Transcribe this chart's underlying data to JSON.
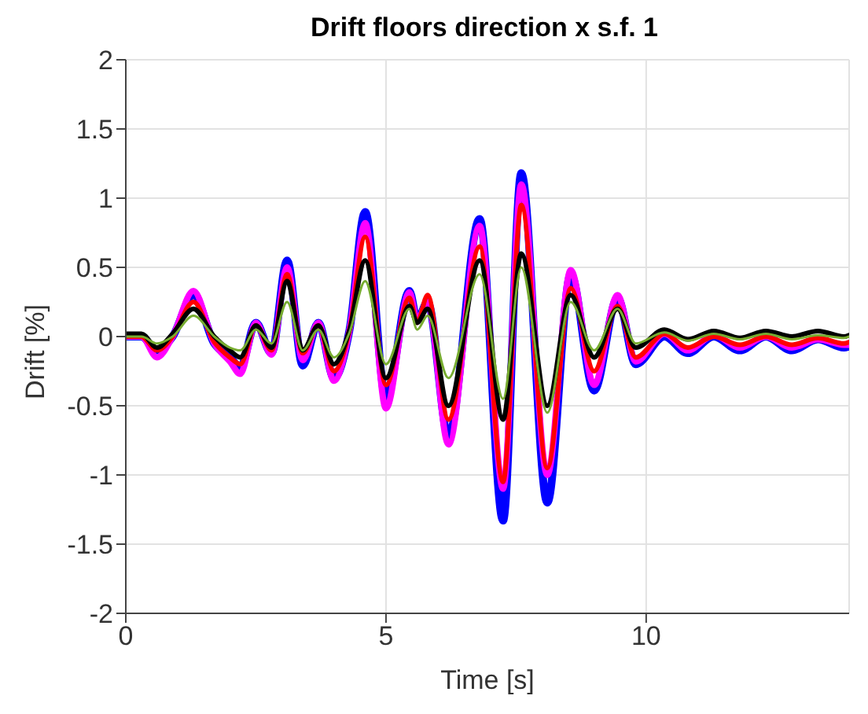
{
  "chart_data": {
    "type": "line",
    "title": "Drift floors direction x s.f. 1",
    "xlabel": "Time [s]",
    "ylabel": "Drift [%]",
    "x": [
      0,
      0.3,
      0.6,
      0.9,
      1.3,
      1.7,
      2.0,
      2.2,
      2.5,
      2.8,
      3.1,
      3.4,
      3.7,
      4.0,
      4.3,
      4.6,
      5.0,
      5.45,
      5.6,
      5.8,
      6.2,
      6.8,
      7.25,
      7.6,
      8.1,
      8.55,
      9.0,
      9.45,
      9.8,
      10.35,
      10.8,
      11.3,
      11.8,
      12.3,
      12.8,
      13.3,
      13.8,
      13.9
    ],
    "series": [
      {
        "color": "#0000ff",
        "values": [
          0,
          0,
          -0.1,
          0,
          0.3,
          -0.05,
          -0.15,
          -0.22,
          0.1,
          -0.12,
          0.55,
          -0.21,
          0.1,
          -0.3,
          0.05,
          0.9,
          -0.45,
          0.33,
          0.12,
          0.25,
          -0.72,
          0.85,
          -1.33,
          1.18,
          -1.2,
          0.45,
          -0.39,
          0.28,
          -0.2,
          0.0,
          -0.12,
          0.0,
          -0.1,
          0.0,
          -0.1,
          -0.02,
          -0.08,
          -0.07
        ]
      },
      {
        "color": "#ff00ff",
        "values": [
          0,
          0,
          -0.15,
          0,
          0.33,
          -0.05,
          -0.18,
          -0.27,
          0.1,
          -0.13,
          0.5,
          -0.17,
          0.1,
          -0.32,
          0.05,
          0.82,
          -0.52,
          0.32,
          0.12,
          0.25,
          -0.78,
          0.8,
          -1.1,
          1.1,
          -1.0,
          0.48,
          -0.35,
          0.3,
          -0.18,
          0.02,
          -0.1,
          0.01,
          -0.08,
          0.0,
          -0.08,
          -0.02,
          -0.06,
          -0.06
        ]
      },
      {
        "color": "#ff0000",
        "values": [
          0,
          0,
          -0.1,
          0,
          0.25,
          -0.04,
          -0.15,
          -0.2,
          0.08,
          -0.1,
          0.45,
          -0.12,
          0.08,
          -0.25,
          0.05,
          0.72,
          -0.35,
          0.28,
          0.1,
          0.3,
          -0.6,
          0.65,
          -1.05,
          0.95,
          -0.95,
          0.35,
          -0.25,
          0.22,
          -0.15,
          0.02,
          -0.08,
          0.0,
          -0.06,
          0.0,
          -0.06,
          -0.01,
          -0.05,
          -0.04
        ]
      },
      {
        "color": "#000000",
        "values": [
          0.02,
          0.02,
          -0.08,
          0.02,
          0.2,
          0,
          -0.1,
          -0.15,
          0.08,
          -0.08,
          0.4,
          -0.1,
          0.08,
          -0.2,
          0.05,
          0.55,
          -0.3,
          0.22,
          0.1,
          0.2,
          -0.5,
          0.55,
          -0.6,
          0.6,
          -0.5,
          0.3,
          -0.15,
          0.2,
          -0.08,
          0.05,
          -0.02,
          0.04,
          -0.01,
          0.04,
          0.0,
          0.04,
          0.0,
          0.01
        ]
      },
      {
        "color": "#77ac30",
        "values": [
          0,
          0,
          -0.05,
          0,
          0.15,
          0,
          -0.08,
          -0.1,
          0.05,
          -0.05,
          0.25,
          -0.1,
          0.05,
          -0.15,
          0.03,
          0.4,
          -0.2,
          0.2,
          0.05,
          0.15,
          -0.3,
          0.45,
          -0.45,
          0.5,
          -0.55,
          0.25,
          -0.1,
          0.2,
          -0.05,
          0.03,
          -0.03,
          0.02,
          -0.02,
          0.02,
          -0.02,
          0.01,
          -0.01,
          0
        ]
      }
    ],
    "xlim": [
      0,
      13.9
    ],
    "xticks": [
      0,
      5,
      10
    ],
    "ylim": [
      -2,
      2
    ],
    "yticks": [
      -2,
      -1.5,
      -1,
      -0.5,
      0,
      0.5,
      1,
      1.5,
      2
    ],
    "grid": true,
    "legend": false,
    "marker": "none",
    "line_style": "solid"
  }
}
